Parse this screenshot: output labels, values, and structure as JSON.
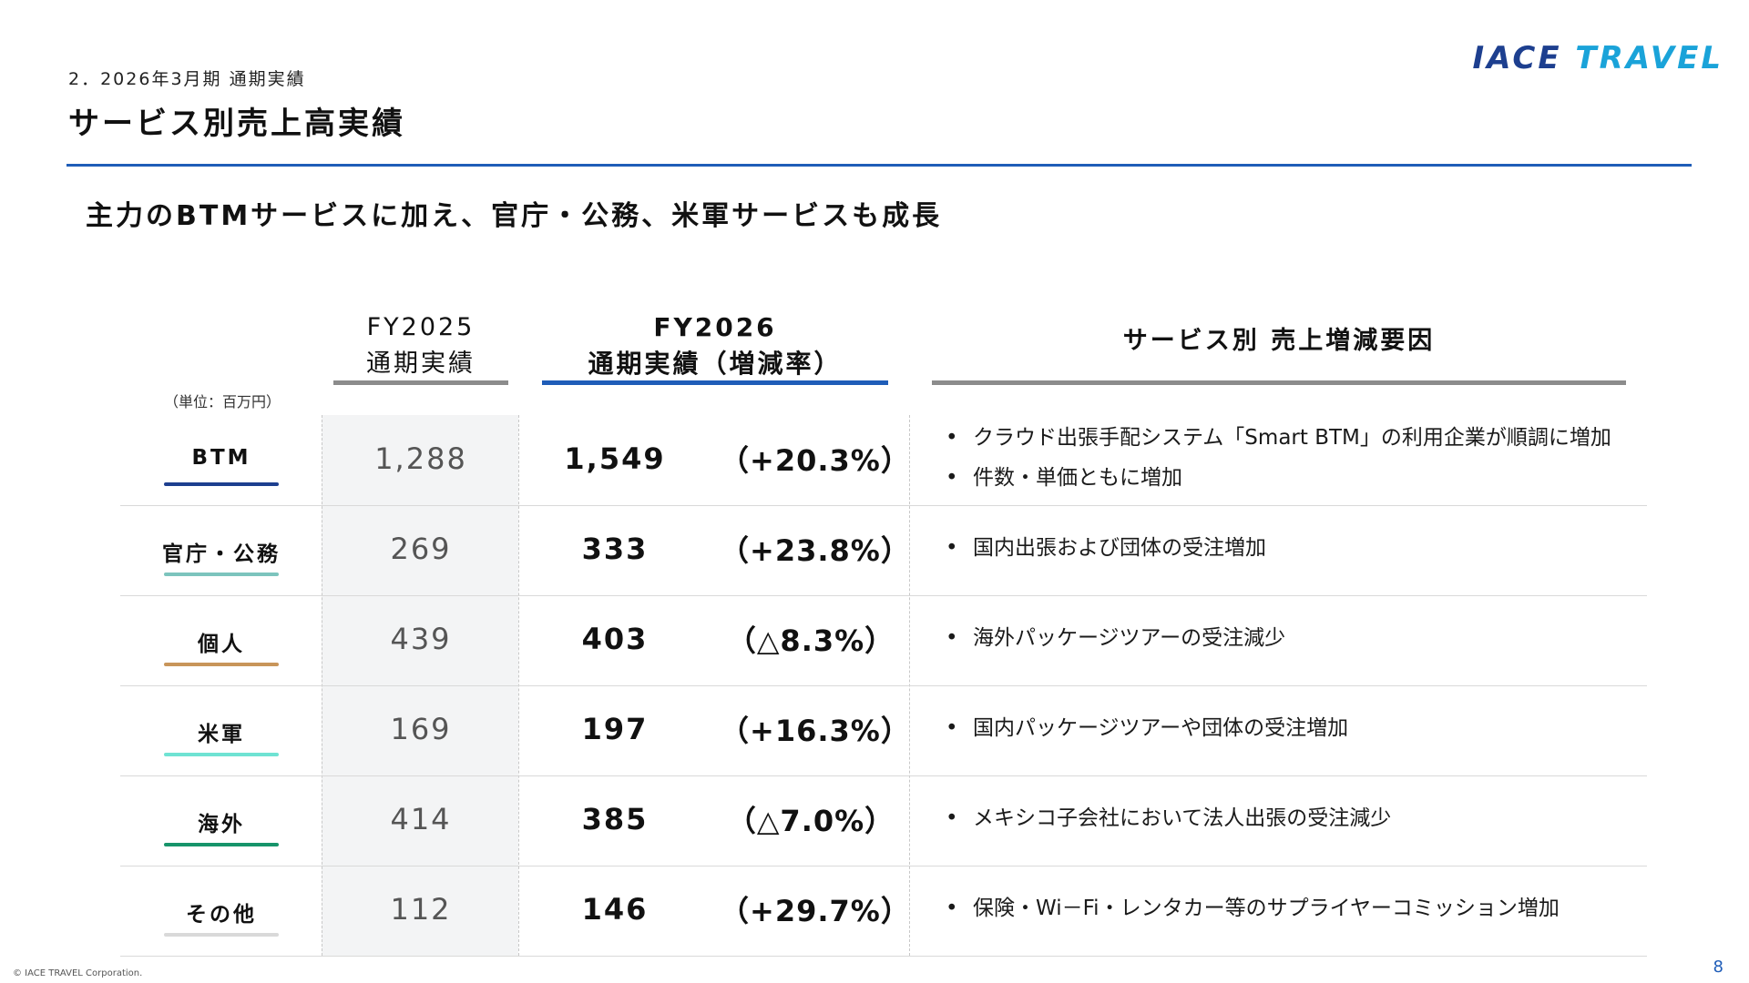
{
  "header": {
    "section_label": "2．2026年3月期 通期実績",
    "page_title": "サービス別売上高実績",
    "logo_part1": "IACE",
    "logo_part2": "TRAVEL",
    "subtitle": "主力のBTMサービスに加え、官庁・公務、米軍サービスも成長"
  },
  "table": {
    "unit_label": "（単位：百万円）",
    "col_fy2025": {
      "line1": "FY2025",
      "line2": "通期実績"
    },
    "col_fy2026": {
      "line1": "FY2026",
      "line2": "通期実績（増減率）"
    },
    "col_factors": "サービス別 売上増減要因",
    "rows": [
      {
        "category": "BTM",
        "color": "#1d3f8f",
        "fy2025": "1,288",
        "fy2026": "1,549",
        "rate": "（+20.3%）",
        "factors": [
          "クラウド出張手配システム「Smart BTM」の利用企業が順調に増加",
          "件数・単価ともに増加"
        ]
      },
      {
        "category": "官庁・公務",
        "color": "#7cc4bd",
        "fy2025": "269",
        "fy2026": "333",
        "rate": "（+23.8%）",
        "factors": [
          "国内出張および団体の受注増加"
        ]
      },
      {
        "category": "個人",
        "color": "#c8955a",
        "fy2025": "439",
        "fy2026": "403",
        "rate": "（△8.3%）",
        "factors": [
          "海外パッケージツアーの受注減少"
        ]
      },
      {
        "category": "米軍",
        "color": "#6fe3d3",
        "fy2025": "169",
        "fy2026": "197",
        "rate": "（+16.3%）",
        "factors": [
          "国内パッケージツアーや団体の受注増加"
        ]
      },
      {
        "category": "海外",
        "color": "#17946a",
        "fy2025": "414",
        "fy2026": "385",
        "rate": "（△7.0%）",
        "factors": [
          "メキシコ子会社において法人出張の受注減少"
        ]
      },
      {
        "category": "その他",
        "color": "#d9d9d9",
        "fy2025": "112",
        "fy2026": "146",
        "rate": "（+29.7%）",
        "factors": [
          "保険・Wi－Fi・レンタカー等のサプライヤーコミッション増加"
        ]
      }
    ]
  },
  "footer": {
    "copyright": "© IACE TRAVEL Corporation.",
    "page_number": "8"
  }
}
